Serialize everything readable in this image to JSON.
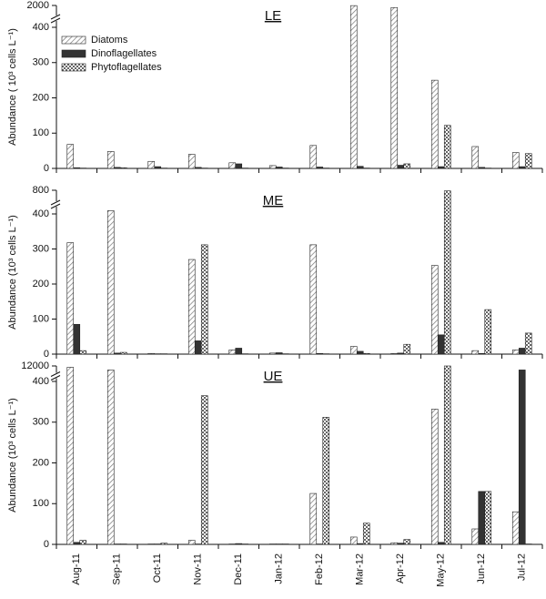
{
  "chart_data": [
    {
      "type": "bar",
      "title": "LE",
      "y_label": "Abundance ( 10³ cells L⁻¹)",
      "ylim": [
        0,
        2000
      ],
      "yticks": [
        0,
        100,
        200,
        300,
        400,
        2000
      ],
      "y_broken": true,
      "legend": "upper left",
      "series": [
        {
          "name": "Diatoms",
          "color": "#ffffff",
          "pattern": "hatch",
          "values": [
            68,
            48,
            20,
            40,
            16,
            8,
            65,
            1990,
            1850,
            250,
            62,
            45
          ]
        },
        {
          "name": "Dinoflagellates",
          "color": "#333333",
          "pattern": "solid",
          "values": [
            2,
            3,
            5,
            3,
            13,
            4,
            4,
            6,
            9,
            5,
            3,
            5
          ]
        },
        {
          "name": "Phytoflagellates",
          "color": "#ffffff",
          "pattern": "checker",
          "values": [
            1,
            2,
            1,
            1,
            1,
            1,
            1,
            1,
            13,
            122,
            1,
            42
          ]
        }
      ]
    },
    {
      "type": "bar",
      "title": "ME",
      "y_label": "Abundance (10³ cells L⁻¹)",
      "ylim": [
        0,
        800
      ],
      "yticks": [
        0,
        100,
        200,
        300,
        400,
        800
      ],
      "y_broken": true,
      "series": [
        {
          "color": "#ffffff",
          "pattern": "hatch",
          "values": [
            318,
            455,
            2,
            270,
            12,
            3,
            312,
            22,
            2,
            253,
            10,
            12
          ]
        },
        {
          "color": "#333333",
          "pattern": "solid",
          "values": [
            85,
            3,
            1,
            38,
            17,
            4,
            2,
            8,
            3,
            55,
            2,
            17
          ]
        },
        {
          "color": "#ffffff",
          "pattern": "checker",
          "values": [
            10,
            5,
            1,
            312,
            1,
            1,
            1,
            2,
            28,
            790,
            127,
            60
          ]
        }
      ]
    },
    {
      "type": "bar",
      "title": "UE",
      "y_label": "Abundance (10³ cells L⁻¹)",
      "ylim": [
        0,
        12000
      ],
      "yticks": [
        0,
        100,
        200,
        300,
        400,
        12000
      ],
      "y_broken": true,
      "categories": [
        "Aug-11",
        "Sep-11",
        "Oct-11",
        "Nov-11",
        "Dec-11",
        "Jan-12",
        "Feb-12",
        "Mar-12",
        "Apr-12",
        "May-12",
        "Jun-12",
        "Jul-12"
      ],
      "series": [
        {
          "color": "#ffffff",
          "pattern": "hatch",
          "values": [
            11000,
            9000,
            1,
            10,
            1,
            1,
            125,
            18,
            4,
            332,
            38,
            80
          ]
        },
        {
          "color": "#333333",
          "pattern": "solid",
          "values": [
            5,
            1,
            1,
            1,
            2,
            1,
            1,
            2,
            3,
            5,
            130,
            9000
          ]
        },
        {
          "color": "#ffffff",
          "pattern": "checker",
          "values": [
            10,
            1,
            3,
            365,
            1,
            1,
            312,
            52,
            12,
            12000,
            130,
            1
          ]
        }
      ]
    }
  ]
}
